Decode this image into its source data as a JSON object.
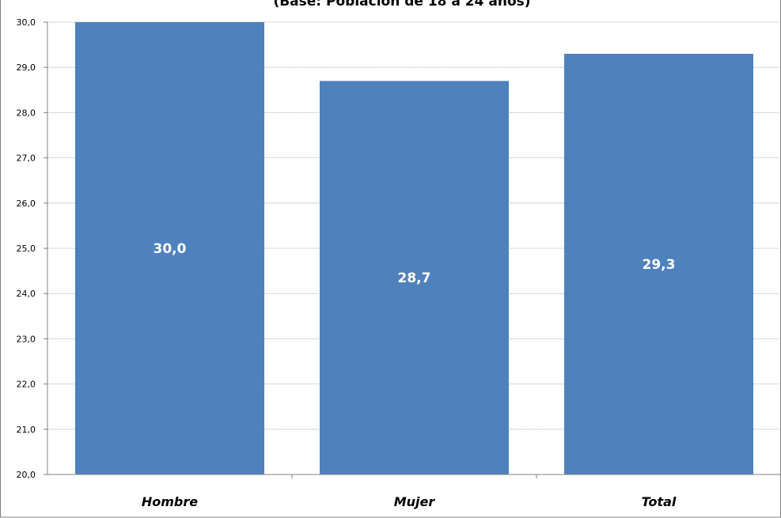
{
  "chart_data": {
    "type": "bar",
    "title": "(Base: Población de 18 a 24 años)",
    "categories": [
      "Hombre",
      "Mujer",
      "Total"
    ],
    "values": [
      30.0,
      28.7,
      29.3
    ],
    "value_labels": [
      "30,0",
      "28,7",
      "29,3"
    ],
    "ylim": [
      20,
      30
    ],
    "yticks": [
      "20,0",
      "21,0",
      "22,0",
      "23,0",
      "24,0",
      "25,0",
      "26,0",
      "27,0",
      "28,0",
      "29,0",
      "30,0"
    ],
    "xlabel": "",
    "ylabel": "",
    "grid": true,
    "legend": "none",
    "colors": {
      "bar": "#4F81BD",
      "grid": "#9a9a9a",
      "axis": "#808080",
      "border": "#808080"
    }
  }
}
